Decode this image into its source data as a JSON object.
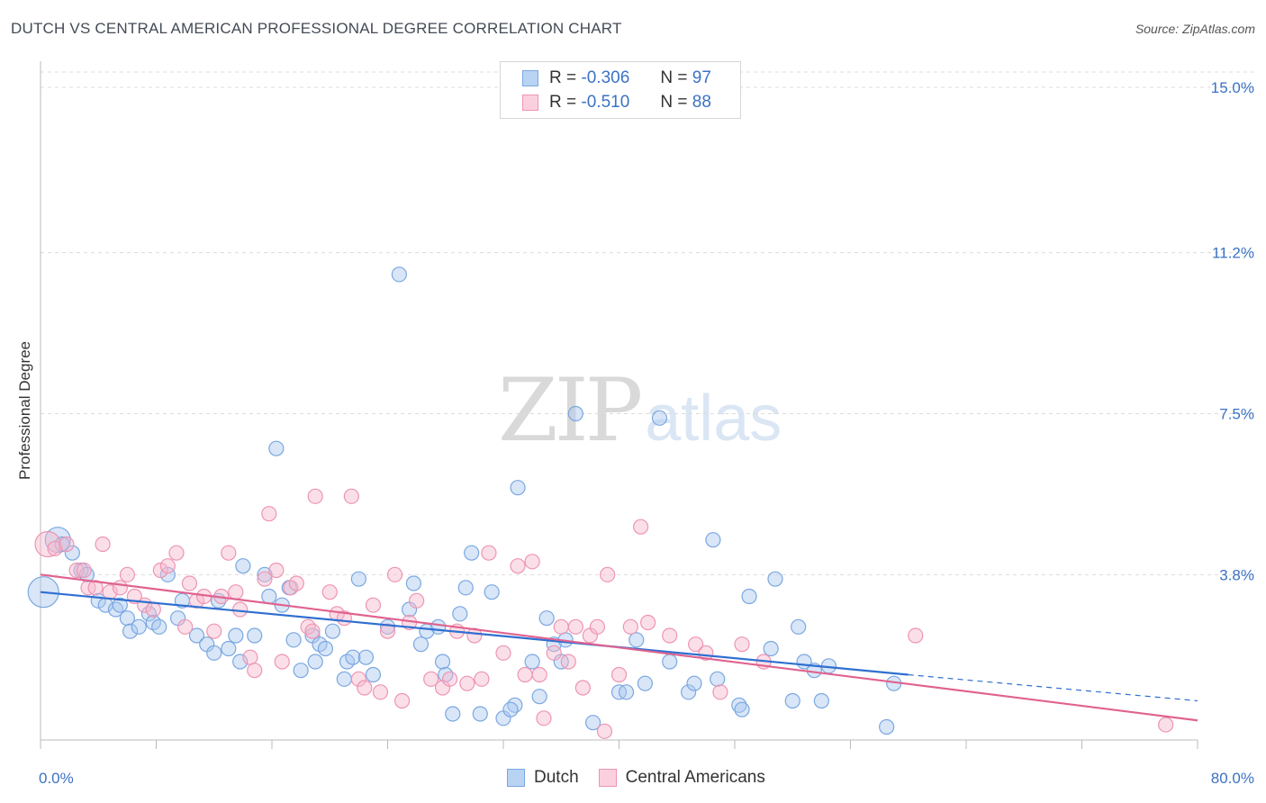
{
  "header": {
    "title": "DUTCH VS CENTRAL AMERICAN PROFESSIONAL DEGREE CORRELATION CHART",
    "source": "Source: ZipAtlas.com"
  },
  "legend_top": {
    "rows": [
      {
        "r_label": "R =",
        "r_value": "-0.306",
        "n_label": "N =",
        "n_value": "97"
      },
      {
        "r_label": "R =",
        "r_value": "-0.510",
        "n_label": "N =",
        "n_value": "88"
      }
    ]
  },
  "legend_bottom": {
    "items": [
      {
        "label": "Dutch"
      },
      {
        "label": "Central Americans"
      }
    ]
  },
  "watermark": {
    "zip": "ZIP",
    "atlas": "atlas"
  },
  "colors": {
    "dutch_fill": "#a9c8f0",
    "dutch_stroke": "#7aa7e0",
    "dutch_line": "#2f6fd0",
    "ca_fill": "#f6b8cb",
    "ca_stroke": "#ee94b2",
    "ca_line": "#e0628f",
    "tick_label": "#3b72c4",
    "grid": "#dcdcdc"
  },
  "chart_data": {
    "type": "scatter",
    "title": "DUTCH VS CENTRAL AMERICAN PROFESSIONAL DEGREE CORRELATION CHART",
    "xlabel": "",
    "ylabel": "Professional Degree",
    "xlim": [
      0,
      80
    ],
    "ylim": [
      0,
      15.6
    ],
    "x_tick_labels": [
      "0.0%",
      "80.0%"
    ],
    "y_ticks": [
      3.8,
      7.5,
      11.2,
      15.0
    ],
    "y_tick_labels": [
      "3.8%",
      "7.5%",
      "11.2%",
      "15.0%"
    ],
    "grid": "horizontal dashed",
    "legend_position": "top-center and bottom-center",
    "series": [
      {
        "name": "Dutch",
        "r": -0.306,
        "n": 97,
        "trend": {
          "x0": 0,
          "y0": 3.4,
          "x1": 60,
          "y1": 1.5,
          "dashed_to_x": 80,
          "dashed_to_y": 0.9
        },
        "points": [
          [
            0.2,
            3.4,
            3
          ],
          [
            1.2,
            4.6,
            2
          ],
          [
            1.5,
            4.5,
            1
          ],
          [
            2.2,
            4.3,
            1
          ],
          [
            2.8,
            3.9,
            1
          ],
          [
            3.2,
            3.8,
            1
          ],
          [
            4.0,
            3.2,
            1
          ],
          [
            4.5,
            3.1,
            1
          ],
          [
            5.2,
            3.0,
            1
          ],
          [
            5.5,
            3.1,
            1
          ],
          [
            6.0,
            2.8,
            1
          ],
          [
            6.2,
            2.5,
            1
          ],
          [
            6.8,
            2.6,
            1
          ],
          [
            7.5,
            2.9,
            1
          ],
          [
            7.8,
            2.7,
            1
          ],
          [
            8.2,
            2.6,
            1
          ],
          [
            8.8,
            3.8,
            1
          ],
          [
            9.5,
            2.8,
            1
          ],
          [
            9.8,
            3.2,
            1
          ],
          [
            10.8,
            2.4,
            1
          ],
          [
            11.5,
            2.2,
            1
          ],
          [
            12.0,
            2.0,
            1
          ],
          [
            12.3,
            3.2,
            1
          ],
          [
            13.0,
            2.1,
            1
          ],
          [
            13.5,
            2.4,
            1
          ],
          [
            13.8,
            1.8,
            1
          ],
          [
            14.0,
            4.0,
            1
          ],
          [
            14.8,
            2.4,
            1
          ],
          [
            15.5,
            3.8,
            1
          ],
          [
            15.8,
            3.3,
            1
          ],
          [
            16.3,
            6.7,
            1
          ],
          [
            16.7,
            3.1,
            1
          ],
          [
            17.2,
            3.5,
            1
          ],
          [
            17.5,
            2.3,
            1
          ],
          [
            18.0,
            1.6,
            1
          ],
          [
            18.8,
            2.4,
            1
          ],
          [
            19.0,
            1.8,
            1
          ],
          [
            19.3,
            2.2,
            1
          ],
          [
            19.7,
            2.1,
            1
          ],
          [
            20.2,
            2.5,
            1
          ],
          [
            21.0,
            1.4,
            1
          ],
          [
            21.2,
            1.8,
            1
          ],
          [
            21.6,
            1.9,
            1
          ],
          [
            22.0,
            3.7,
            1
          ],
          [
            22.5,
            1.9,
            1
          ],
          [
            23.0,
            1.5,
            1
          ],
          [
            24.0,
            2.6,
            1
          ],
          [
            24.8,
            10.7,
            1
          ],
          [
            25.5,
            3.0,
            1
          ],
          [
            25.8,
            3.6,
            1
          ],
          [
            26.3,
            2.2,
            1
          ],
          [
            26.7,
            2.5,
            1
          ],
          [
            27.5,
            2.6,
            1
          ],
          [
            27.8,
            1.8,
            1
          ],
          [
            28.0,
            1.5,
            1
          ],
          [
            28.5,
            0.6,
            1
          ],
          [
            29.0,
            2.9,
            1
          ],
          [
            29.4,
            3.5,
            1
          ],
          [
            29.8,
            4.3,
            1
          ],
          [
            30.4,
            0.6,
            1
          ],
          [
            31.2,
            3.4,
            1
          ],
          [
            32.0,
            0.5,
            1
          ],
          [
            32.8,
            0.8,
            1
          ],
          [
            32.5,
            0.7,
            1
          ],
          [
            33.0,
            5.8,
            1
          ],
          [
            34.0,
            1.8,
            1
          ],
          [
            34.5,
            1.0,
            1
          ],
          [
            35.0,
            2.8,
            1
          ],
          [
            35.5,
            2.2,
            1
          ],
          [
            36.0,
            1.8,
            1
          ],
          [
            36.3,
            2.3,
            1
          ],
          [
            37.0,
            7.5,
            1
          ],
          [
            38.2,
            0.4,
            1
          ],
          [
            40.0,
            1.1,
            1
          ],
          [
            40.5,
            1.1,
            1
          ],
          [
            41.2,
            2.3,
            1
          ],
          [
            41.8,
            1.3,
            1
          ],
          [
            42.8,
            7.4,
            1
          ],
          [
            43.5,
            1.8,
            1
          ],
          [
            44.8,
            1.1,
            1
          ],
          [
            45.2,
            1.3,
            1
          ],
          [
            46.8,
            1.4,
            1
          ],
          [
            46.5,
            4.6,
            1
          ],
          [
            48.3,
            0.8,
            1
          ],
          [
            48.5,
            0.7,
            1
          ],
          [
            49.0,
            3.3,
            1
          ],
          [
            50.5,
            2.1,
            1
          ],
          [
            50.8,
            3.7,
            1
          ],
          [
            52.0,
            0.9,
            1
          ],
          [
            52.4,
            2.6,
            1
          ],
          [
            52.8,
            1.8,
            1
          ],
          [
            53.5,
            1.6,
            1
          ],
          [
            54.0,
            0.9,
            1
          ],
          [
            54.5,
            1.7,
            1
          ],
          [
            58.5,
            0.3,
            1
          ],
          [
            59.0,
            1.3,
            1
          ]
        ]
      },
      {
        "name": "Central Americans",
        "r": -0.51,
        "n": 88,
        "trend": {
          "x0": 0,
          "y0": 3.8,
          "x1": 80,
          "y1": 0.45
        },
        "points": [
          [
            0.5,
            4.5,
            2
          ],
          [
            1.0,
            4.4,
            1
          ],
          [
            1.8,
            4.5,
            1
          ],
          [
            2.5,
            3.9,
            1
          ],
          [
            3.0,
            3.9,
            1
          ],
          [
            3.3,
            3.5,
            1
          ],
          [
            3.8,
            3.5,
            1
          ],
          [
            4.3,
            4.5,
            1
          ],
          [
            4.8,
            3.4,
            1
          ],
          [
            5.5,
            3.5,
            1
          ],
          [
            6.0,
            3.8,
            1
          ],
          [
            6.5,
            3.3,
            1
          ],
          [
            7.2,
            3.1,
            1
          ],
          [
            7.8,
            3.0,
            1
          ],
          [
            8.3,
            3.9,
            1
          ],
          [
            8.8,
            4.0,
            1
          ],
          [
            9.4,
            4.3,
            1
          ],
          [
            10.0,
            2.6,
            1
          ],
          [
            10.3,
            3.6,
            1
          ],
          [
            10.8,
            3.2,
            1
          ],
          [
            11.3,
            3.3,
            1
          ],
          [
            12.0,
            2.5,
            1
          ],
          [
            12.5,
            3.3,
            1
          ],
          [
            13.0,
            4.3,
            1
          ],
          [
            13.5,
            3.4,
            1
          ],
          [
            13.8,
            3.0,
            1
          ],
          [
            14.5,
            1.9,
            1
          ],
          [
            14.8,
            1.6,
            1
          ],
          [
            15.5,
            3.7,
            1
          ],
          [
            15.8,
            5.2,
            1
          ],
          [
            16.3,
            3.9,
            1
          ],
          [
            16.7,
            1.8,
            1
          ],
          [
            17.3,
            3.5,
            1
          ],
          [
            17.7,
            3.6,
            1
          ],
          [
            18.5,
            2.6,
            1
          ],
          [
            18.8,
            2.5,
            1
          ],
          [
            19.0,
            5.6,
            1
          ],
          [
            20.0,
            3.4,
            1
          ],
          [
            20.5,
            2.9,
            1
          ],
          [
            21.0,
            2.8,
            1
          ],
          [
            21.5,
            5.6,
            1
          ],
          [
            22.0,
            1.4,
            1
          ],
          [
            22.4,
            1.2,
            1
          ],
          [
            23.0,
            3.1,
            1
          ],
          [
            23.5,
            1.1,
            1
          ],
          [
            24.0,
            2.5,
            1
          ],
          [
            24.5,
            3.8,
            1
          ],
          [
            25.0,
            0.9,
            1
          ],
          [
            25.5,
            2.7,
            1
          ],
          [
            26.0,
            3.2,
            1
          ],
          [
            27.0,
            1.4,
            1
          ],
          [
            27.8,
            1.2,
            1
          ],
          [
            28.3,
            1.4,
            1
          ],
          [
            28.8,
            2.5,
            1
          ],
          [
            29.5,
            1.3,
            1
          ],
          [
            30.0,
            2.4,
            1
          ],
          [
            30.5,
            1.4,
            1
          ],
          [
            31.0,
            4.3,
            1
          ],
          [
            32.0,
            2.0,
            1
          ],
          [
            33.0,
            4.0,
            1
          ],
          [
            33.5,
            1.5,
            1
          ],
          [
            34.0,
            4.1,
            1
          ],
          [
            34.5,
            1.5,
            1
          ],
          [
            34.8,
            0.5,
            1
          ],
          [
            35.5,
            2.0,
            1
          ],
          [
            36.0,
            2.6,
            1
          ],
          [
            36.5,
            1.8,
            1
          ],
          [
            37.0,
            2.6,
            1
          ],
          [
            37.5,
            1.2,
            1
          ],
          [
            38.0,
            2.4,
            1
          ],
          [
            38.5,
            2.6,
            1
          ],
          [
            39.0,
            0.2,
            1
          ],
          [
            39.2,
            3.8,
            1
          ],
          [
            40.0,
            1.5,
            1
          ],
          [
            40.8,
            2.6,
            1
          ],
          [
            41.5,
            4.9,
            1
          ],
          [
            42.0,
            2.7,
            1
          ],
          [
            43.5,
            2.4,
            1
          ],
          [
            45.3,
            2.2,
            1
          ],
          [
            46.0,
            2.0,
            1
          ],
          [
            47.0,
            1.1,
            1
          ],
          [
            48.5,
            2.2,
            1
          ],
          [
            50.0,
            1.8,
            1
          ],
          [
            60.5,
            2.4,
            1
          ],
          [
            77.8,
            0.35,
            1
          ]
        ]
      }
    ]
  }
}
